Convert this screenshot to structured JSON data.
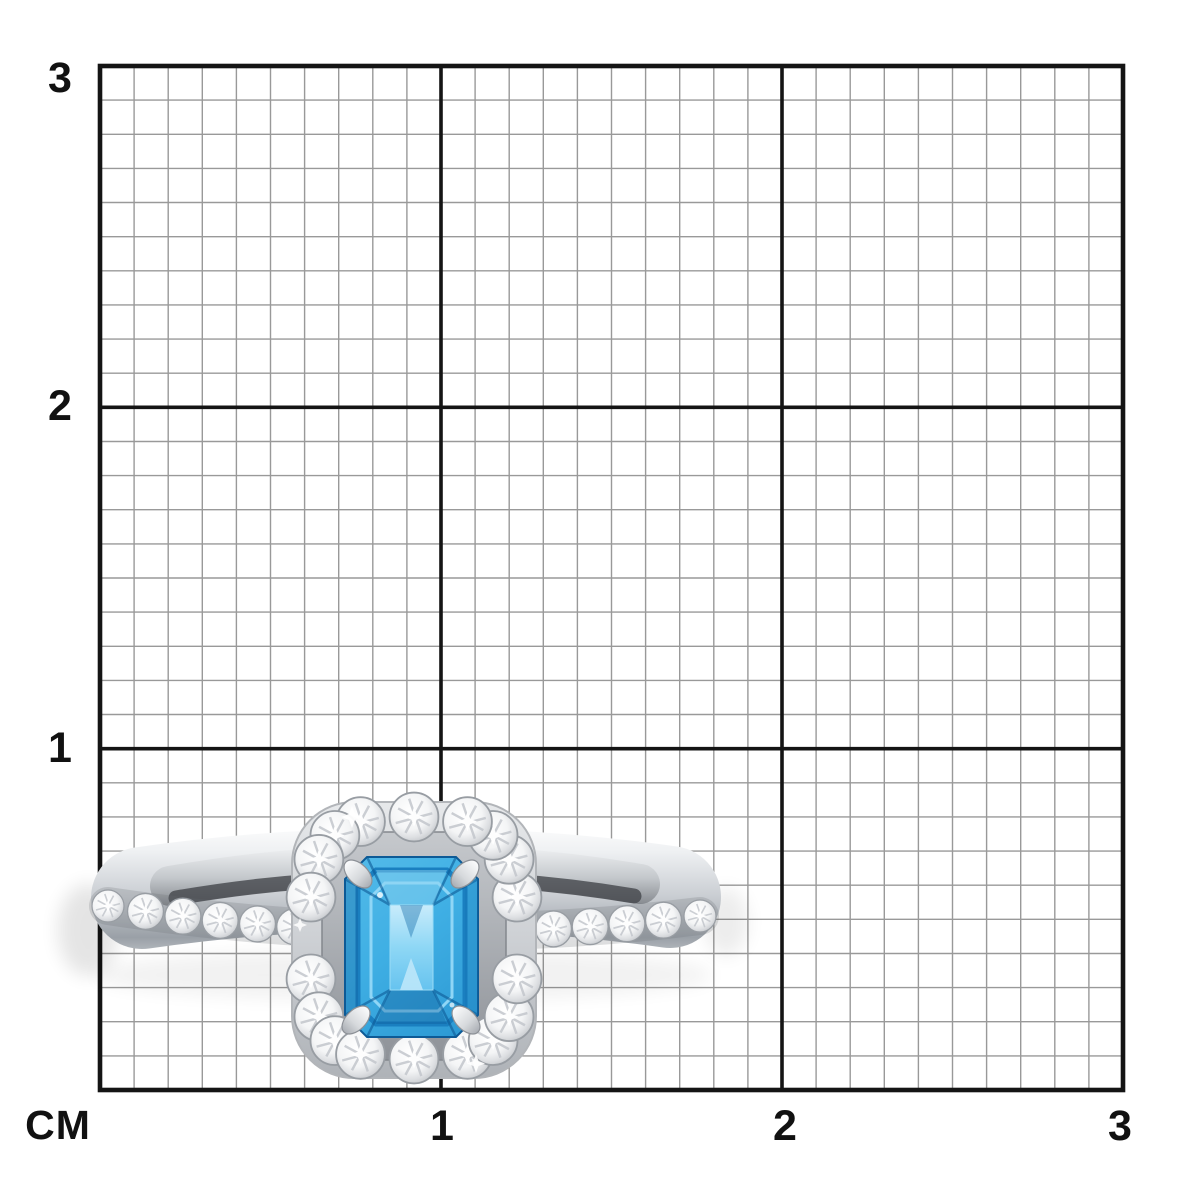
{
  "scene": {
    "description": "Blue emerald-cut gemstone halo ring with diamond pave band photographed on a centimeter measurement grid",
    "background_color": "#ffffff"
  },
  "grid": {
    "unit_label": "CM",
    "left_axis_labels": [
      "3",
      "2",
      "1"
    ],
    "bottom_axis_labels": [
      "1",
      "2",
      "3"
    ],
    "cm_span": 3,
    "minor_divisions_per_cm": 10,
    "minor_line_color": "#999999",
    "major_line_color": "#141414",
    "label_color": "#111111"
  },
  "ring": {
    "metal_highlight": "#ffffff",
    "metal_light": "#eff1f3",
    "metal_mid": "#c9cdd2",
    "metal_dark": "#8f939a",
    "stone_blue_light": "#c9ecfb",
    "stone_blue": "#3fafe4",
    "stone_blue_dark": "#1470ae",
    "stone_blue_deep": "#0d5a96",
    "pave_stone_count": 17,
    "halo_stone_count": 18
  }
}
